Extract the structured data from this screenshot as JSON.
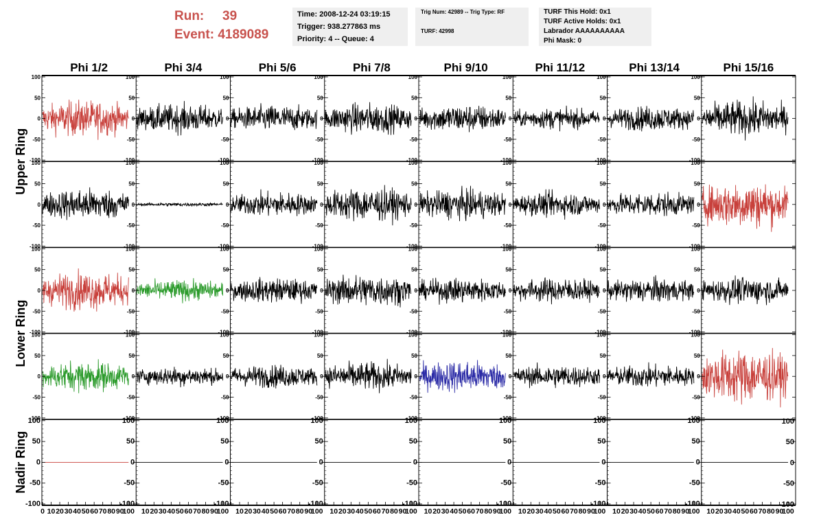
{
  "header": {
    "run_label": "Run:",
    "run_value": "39",
    "event_label": "Event:",
    "event_value": "4189089",
    "time_line": "Time: 2008-12-24 03:19:15",
    "trigger_line": "Trigger: 938.277863 ms",
    "priority_line": "Priority: 4 -- Queue: 4",
    "trignum_line": "Trig Num: 42989 -- Trig Type: RF",
    "turf_line": "TURF: 42998",
    "turf_hold_line": "TURF This Hold: 0x1",
    "turf_active_line": "TURF Active Holds: 0x1",
    "labrador_line": "Labrador AAAAAAAAAA",
    "phi_mask_line": "Phi Mask: 0"
  },
  "colors": {
    "red": "#c8403b",
    "green": "#2a9a2a",
    "blue": "#2a2aa6",
    "black": "#000000",
    "header_red": "#c8524d",
    "box_bg": "#efefef"
  },
  "chart_data": {
    "type": "line",
    "columns": [
      "Phi 1/2",
      "Phi 3/4",
      "Phi 5/6",
      "Phi 7/8",
      "Phi 9/10",
      "Phi 11/12",
      "Phi 13/14",
      "Phi 15/16"
    ],
    "row_groups": [
      {
        "label": "Upper Ring",
        "rows": [
          0,
          1
        ]
      },
      {
        "label": "Lower Ring",
        "rows": [
          2,
          3
        ]
      },
      {
        "label": "Nadir Ring",
        "rows": [
          4
        ]
      }
    ],
    "ylim": [
      -100,
      100
    ],
    "y_ticks": [
      "100",
      "50",
      "0",
      "-50",
      "-100"
    ],
    "xlim": [
      0,
      100
    ],
    "x_tick_labels": [
      "0",
      "10",
      "20",
      "30",
      "40",
      "50",
      "60",
      "70",
      "80",
      "90",
      "100"
    ],
    "samples": 260,
    "traces": [
      [
        {
          "color": "red",
          "amp": 38
        },
        {
          "color": "black",
          "amp": 30
        },
        {
          "color": "black",
          "amp": 28
        },
        {
          "color": "black",
          "amp": 32
        },
        {
          "color": "black",
          "amp": 30
        },
        {
          "color": "black",
          "amp": 22
        },
        {
          "color": "black",
          "amp": 26
        },
        {
          "color": "black",
          "amp": 38
        }
      ],
      [
        {
          "color": "black",
          "amp": 34
        },
        {
          "color": "black",
          "amp": 4
        },
        {
          "color": "black",
          "amp": 26
        },
        {
          "color": "black",
          "amp": 36
        },
        {
          "color": "black",
          "amp": 32
        },
        {
          "color": "black",
          "amp": 26
        },
        {
          "color": "black",
          "amp": 26
        },
        {
          "color": "red",
          "amp": 50
        }
      ],
      [
        {
          "color": "red",
          "amp": 40
        },
        {
          "color": "green",
          "amp": 22
        },
        {
          "color": "black",
          "amp": 26
        },
        {
          "color": "black",
          "amp": 34
        },
        {
          "color": "black",
          "amp": 26
        },
        {
          "color": "black",
          "amp": 26
        },
        {
          "color": "black",
          "amp": 26
        },
        {
          "color": "black",
          "amp": 28
        }
      ],
      [
        {
          "color": "green",
          "amp": 32
        },
        {
          "color": "black",
          "amp": 20
        },
        {
          "color": "black",
          "amp": 24
        },
        {
          "color": "black",
          "amp": 30
        },
        {
          "color": "blue",
          "amp": 34
        },
        {
          "color": "black",
          "amp": 24
        },
        {
          "color": "black",
          "amp": 24
        },
        {
          "color": "red",
          "amp": 58
        }
      ],
      [
        {
          "color": "red",
          "amp": 0
        },
        {
          "color": "black",
          "amp": 0
        },
        {
          "color": "black",
          "amp": 0
        },
        {
          "color": "black",
          "amp": 0
        },
        {
          "color": "black",
          "amp": 0
        },
        {
          "color": "black",
          "amp": 0
        },
        {
          "color": "black",
          "amp": 0
        },
        {
          "color": "black",
          "amp": 0
        }
      ]
    ]
  }
}
